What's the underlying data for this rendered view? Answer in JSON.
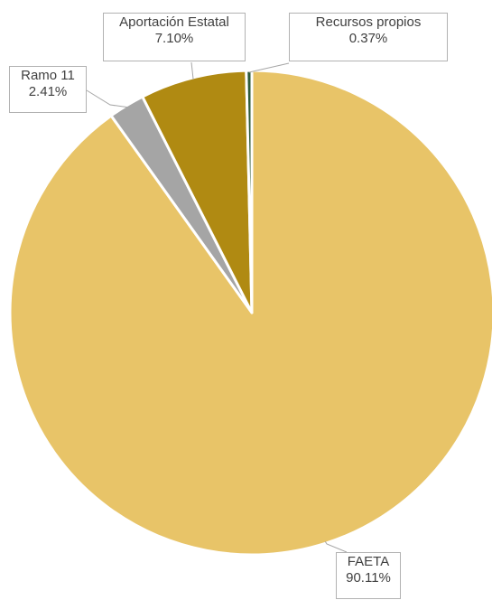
{
  "chart_data": {
    "type": "pie",
    "title": "",
    "slices": [
      {
        "label": "FAETA",
        "value": 90.11,
        "value_text": "90.11%",
        "color": "#e8c468"
      },
      {
        "label": "Ramo 11",
        "value": 2.41,
        "value_text": "2.41%",
        "color": "#a5a5a5"
      },
      {
        "label": "Aportación Estatal",
        "value": 7.1,
        "value_text": "7.10%",
        "color": "#b08a12"
      },
      {
        "label": "Recursos propios",
        "value": 0.37,
        "value_text": "0.37%",
        "color": "#2d5a3a"
      }
    ],
    "start_angle_deg": 0,
    "direction": "clockwise",
    "legend": "none",
    "data_labels": "callout"
  }
}
